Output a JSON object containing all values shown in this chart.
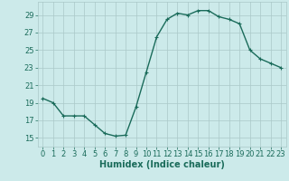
{
  "x": [
    0,
    1,
    2,
    3,
    4,
    5,
    6,
    7,
    8,
    9,
    10,
    11,
    12,
    13,
    14,
    15,
    16,
    17,
    18,
    19,
    20,
    21,
    22,
    23
  ],
  "y": [
    19.5,
    19.0,
    17.5,
    17.5,
    17.5,
    16.5,
    15.5,
    15.2,
    15.3,
    18.5,
    22.5,
    26.5,
    28.5,
    29.2,
    29.0,
    29.5,
    29.5,
    28.8,
    28.5,
    28.0,
    25.0,
    24.0,
    23.5,
    23.0
  ],
  "line_color": "#1a6b5a",
  "marker": "+",
  "marker_size": 3,
  "marker_linewidth": 0.8,
  "bg_color": "#cceaea",
  "grid_color": "#aac8c8",
  "xlabel": "Humidex (Indice chaleur)",
  "xlim": [
    -0.5,
    23.5
  ],
  "ylim": [
    14.0,
    30.5
  ],
  "yticks": [
    15,
    17,
    19,
    21,
    23,
    25,
    27,
    29
  ],
  "xticks": [
    0,
    1,
    2,
    3,
    4,
    5,
    6,
    7,
    8,
    9,
    10,
    11,
    12,
    13,
    14,
    15,
    16,
    17,
    18,
    19,
    20,
    21,
    22,
    23
  ],
  "xlabel_fontsize": 7,
  "tick_fontsize": 6,
  "linewidth": 1.0
}
